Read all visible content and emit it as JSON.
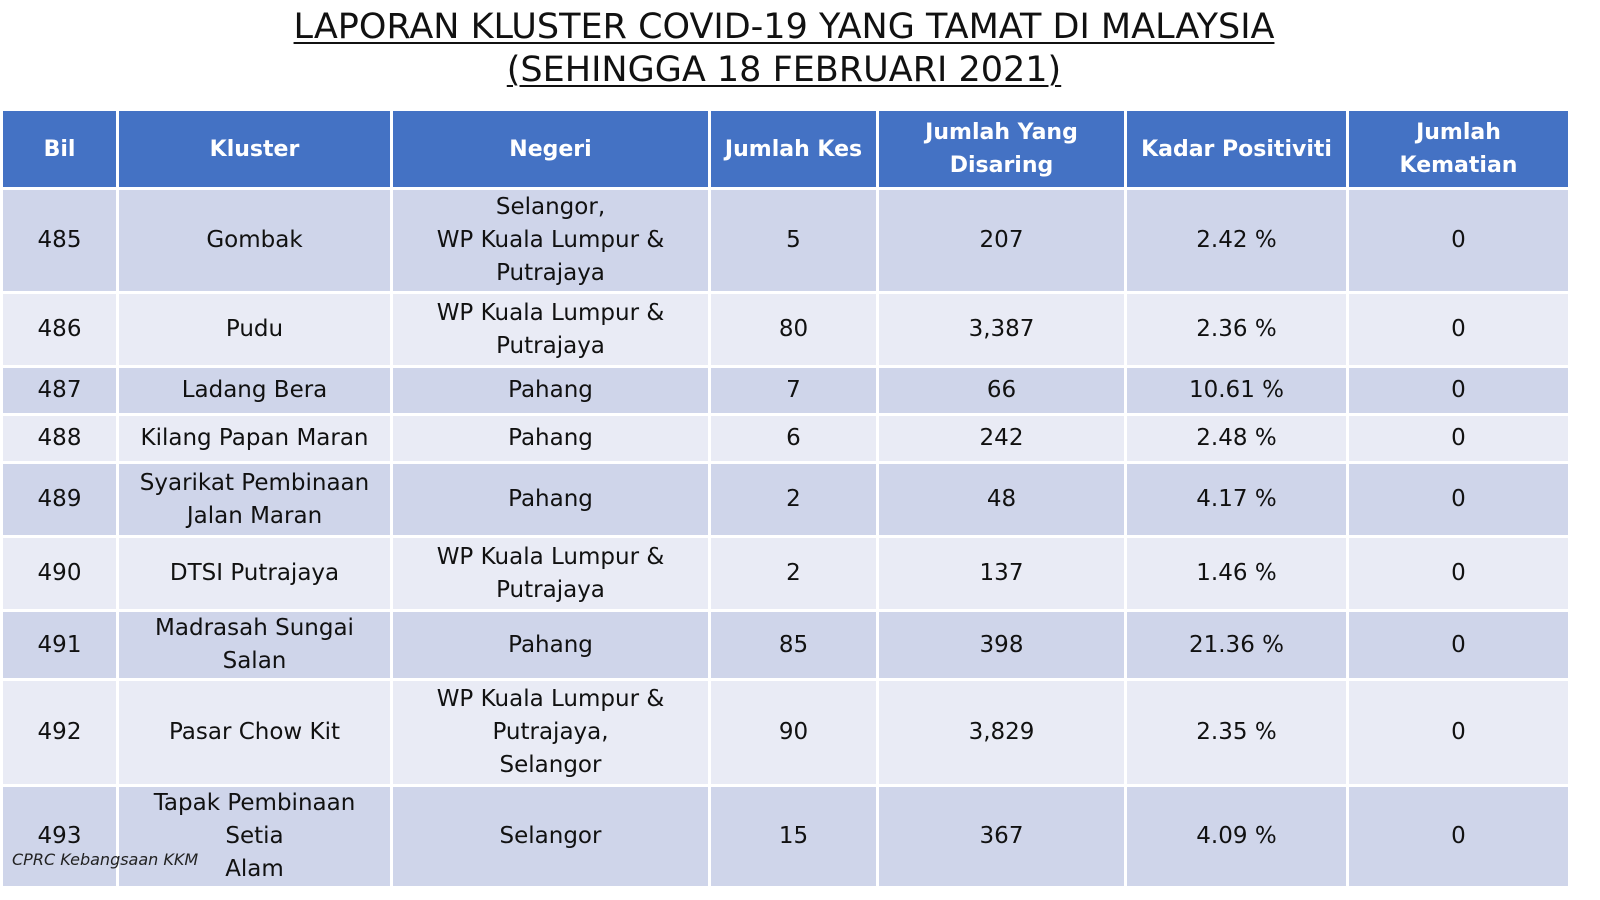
{
  "title": {
    "line1": "LAPORAN KLUSTER COVID-19 YANG TAMAT DI MALAYSIA",
    "line2": "(SEHINGGA 18 FEBRUARI 2021)"
  },
  "table": {
    "headers": {
      "bil": "Bil",
      "kluster": "Kluster",
      "negeri": "Negeri",
      "jumlah_kes": "Jumlah Kes",
      "jumlah_disaring_1": "Jumlah Yang",
      "jumlah_disaring_2": "Disaring",
      "kadar_positiviti": "Kadar Positiviti",
      "jumlah_kematian": "Jumlah Kematian"
    },
    "rows": [
      {
        "bil": "485",
        "kluster": [
          "Gombak"
        ],
        "negeri": [
          "Selangor,",
          "WP Kuala Lumpur &",
          "Putrajaya"
        ],
        "kes": "5",
        "disaring": "207",
        "positiviti": "2.42 %",
        "kematian": "0"
      },
      {
        "bil": "486",
        "kluster": [
          "Pudu"
        ],
        "negeri": [
          "WP Kuala Lumpur &",
          "Putrajaya"
        ],
        "kes": "80",
        "disaring": "3,387",
        "positiviti": "2.36 %",
        "kematian": "0"
      },
      {
        "bil": "487",
        "kluster": [
          "Ladang Bera"
        ],
        "negeri": [
          "Pahang"
        ],
        "kes": "7",
        "disaring": "66",
        "positiviti": "10.61 %",
        "kematian": "0"
      },
      {
        "bil": "488",
        "kluster": [
          "Kilang Papan Maran"
        ],
        "negeri": [
          "Pahang"
        ],
        "kes": "6",
        "disaring": "242",
        "positiviti": "2.48 %",
        "kematian": "0"
      },
      {
        "bil": "489",
        "kluster": [
          "Syarikat Pembinaan",
          "Jalan Maran"
        ],
        "negeri": [
          "Pahang"
        ],
        "kes": "2",
        "disaring": "48",
        "positiviti": "4.17 %",
        "kematian": "0"
      },
      {
        "bil": "490",
        "kluster": [
          "DTSI Putrajaya"
        ],
        "negeri": [
          "WP Kuala Lumpur &",
          "Putrajaya"
        ],
        "kes": "2",
        "disaring": "137",
        "positiviti": "1.46 %",
        "kematian": "0"
      },
      {
        "bil": "491",
        "kluster": [
          "Madrasah Sungai Salan"
        ],
        "negeri": [
          "Pahang"
        ],
        "kes": "85",
        "disaring": "398",
        "positiviti": "21.36 %",
        "kematian": "0"
      },
      {
        "bil": "492",
        "kluster": [
          "Pasar Chow Kit"
        ],
        "negeri": [
          "WP Kuala Lumpur &",
          "Putrajaya,",
          "Selangor"
        ],
        "kes": "90",
        "disaring": "3,829",
        "positiviti": "2.35 %",
        "kematian": "0"
      },
      {
        "bil": "493",
        "kluster": [
          "Tapak Pembinaan Setia",
          "Alam"
        ],
        "negeri": [
          "Selangor"
        ],
        "kes": "15",
        "disaring": "367",
        "positiviti": "4.09 %",
        "kematian": "0"
      }
    ]
  },
  "footer": {
    "source": "CPRC Kebangsaan KKM"
  },
  "colors": {
    "header_bg": "#4472c4",
    "row_dark": "#cfd5ea",
    "row_light": "#e9ebf5"
  }
}
